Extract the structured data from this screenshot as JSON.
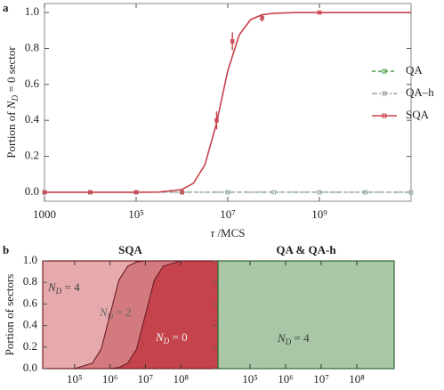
{
  "chart_data": [
    {
      "type": "line",
      "panel_label": "a",
      "log_x": true,
      "legend": "right",
      "y_label": [
        "Portion of ",
        "N",
        "D",
        " = 0 sector"
      ],
      "x_label": [
        "τ",
        " /MCS"
      ],
      "xlim": [
        1000,
        100000000000
      ],
      "xticks": [
        1000,
        {
          "value": 100000,
          "label": "10⁵"
        },
        {
          "value": 10000000,
          "label": "10⁷"
        },
        {
          "value": 1000000000,
          "label": "10⁹"
        }
      ],
      "ylim": [
        -0.05,
        1.05
      ],
      "yticks": [
        {
          "value": 0,
          "label": "0.0"
        },
        {
          "value": 0.2,
          "label": "0.2"
        },
        {
          "value": 0.4,
          "label": "0.4"
        },
        {
          "value": 0.6,
          "label": "0.6"
        },
        {
          "value": 0.8,
          "label": "0.8"
        },
        {
          "value": 1,
          "label": "1.0"
        }
      ],
      "series": [
        {
          "name": "QA",
          "color": "#4b9a4b",
          "linestyle": "dashed",
          "x": [
            1000,
            10000,
            100000,
            1000000,
            10000000,
            100000000,
            1000000000,
            10000000000,
            100000000000
          ],
          "values": [
            0,
            0,
            0,
            0,
            0,
            0,
            0,
            0,
            0
          ]
        },
        {
          "name": "QA–h",
          "color": "#9aa3a8",
          "linestyle": "dashdot",
          "x": [
            1000,
            10000,
            100000,
            1000000,
            10000000,
            100000000,
            1000000000,
            10000000000,
            100000000000
          ],
          "values": [
            0,
            0,
            0,
            0,
            0,
            0,
            0,
            0,
            0
          ]
        },
        {
          "name": "SQA",
          "color": "#c8414b",
          "linestyle": "solid",
          "x": [
            1000,
            10000,
            100000,
            1000000,
            5700000,
            12600000,
            56000000,
            1000000000
          ],
          "values": [
            0,
            0,
            0,
            0,
            0.4,
            0.84,
            0.97,
            1.0
          ],
          "errors": [
            0,
            0,
            0,
            0,
            0.05,
            0.05,
            0.02,
            0
          ],
          "fit_x": [
            1000,
            10000,
            100000,
            316228,
            1000000,
            1778279,
            3162278,
            5623413,
            10000000,
            17782794,
            31622777,
            56234133,
            100000000,
            316227766,
            1000000000,
            10000000000,
            100000000000
          ],
          "fit_values": [
            0,
            0,
            0,
            0.001,
            0.015,
            0.05,
            0.152,
            0.38,
            0.676,
            0.876,
            0.961,
            0.988,
            0.996,
            1,
            1,
            1,
            1
          ]
        }
      ]
    },
    {
      "type": "stacked_area",
      "panel_label": "b",
      "title": "SQA",
      "title_color": "#a0303c",
      "line_color": "#6e1d27",
      "log_x": true,
      "y_label": [
        "Portion of sectors"
      ],
      "xlim": [
        12589,
        1122018454
      ],
      "xticks": [
        {
          "value": 100000,
          "label": "10⁵"
        },
        {
          "value": 1000000,
          "label": "10⁶"
        },
        {
          "value": 10000000,
          "label": "10⁷"
        },
        {
          "value": 100000000,
          "label": "10⁸"
        }
      ],
      "ylim": [
        0,
        1
      ],
      "yticks": [
        {
          "value": 0,
          "label": "0.0"
        },
        {
          "value": 0.2,
          "label": "0.2"
        },
        {
          "value": 0.4,
          "label": "0.4"
        },
        {
          "value": 0.6,
          "label": "0.6"
        },
        {
          "value": 0.8,
          "label": "0.8"
        },
        {
          "value": 1,
          "label": "1.0"
        }
      ],
      "x": [
        12589,
        100000,
        316228,
        562341,
        1000000,
        1778279,
        3162278,
        5623413,
        10000000,
        17782794,
        31622777,
        100000000,
        1122018454
      ],
      "series": [
        {
          "label": [
            "N",
            "D",
            " = 0"
          ],
          "color": "#c5434c",
          "values": [
            0,
            0,
            0,
            0,
            0,
            0.01,
            0.05,
            0.18,
            0.5,
            0.82,
            0.95,
            1,
            1
          ]
        },
        {
          "label": [
            "N",
            "D",
            " = 2"
          ],
          "color": "#d27a7d",
          "values": [
            0,
            0,
            0.05,
            0.18,
            0.5,
            0.81,
            0.9,
            0.81,
            0.5,
            0.18,
            0.05,
            0,
            0
          ]
        },
        {
          "label": [
            "N",
            "D",
            " = 4"
          ],
          "color": "#e6aaac",
          "values": [
            1,
            1,
            0.95,
            0.82,
            0.5,
            0.18,
            0.05,
            0.01,
            0,
            0,
            0,
            0,
            0
          ]
        }
      ]
    },
    {
      "type": "stacked_area",
      "title": "QA & QA-h",
      "title_color": "#2e6b2e",
      "line_color": "#2e6b2e",
      "log_x": true,
      "xlim": [
        12589,
        1122018454
      ],
      "xticks": [
        {
          "value": 100000,
          "label": "10⁵"
        },
        {
          "value": 1000000,
          "label": "10⁶"
        },
        {
          "value": 10000000,
          "label": "10⁷"
        },
        {
          "value": 100000000,
          "label": "10⁸"
        }
      ],
      "ylim": [
        0,
        1
      ],
      "x": [
        12589,
        1122018454
      ],
      "series": [
        {
          "label": [
            "N",
            "D",
            " = 4"
          ],
          "color": "#a9c7a6",
          "values": [
            1,
            1
          ]
        }
      ]
    }
  ]
}
